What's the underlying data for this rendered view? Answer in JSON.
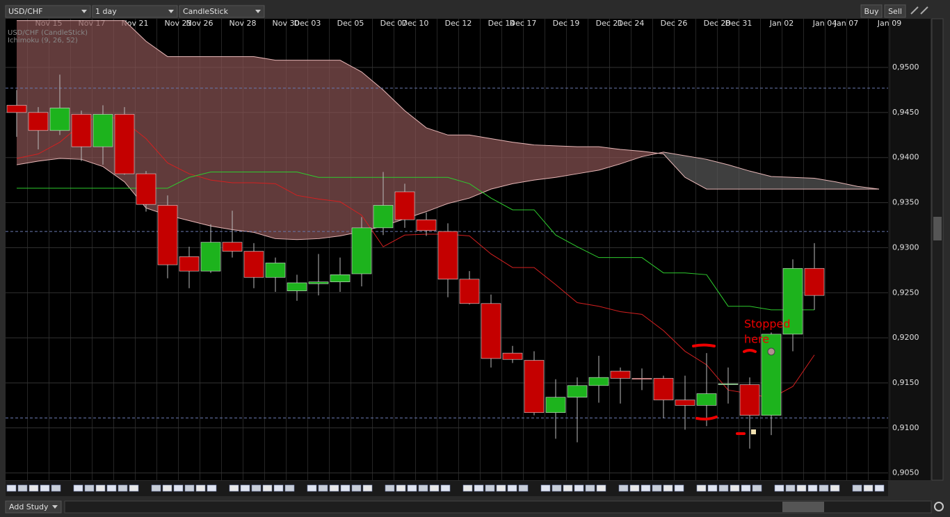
{
  "toolbar": {
    "symbol": "USD/CHF",
    "period": "1 day",
    "chart_type": "CandleStick",
    "buy": "Buy",
    "sell": "Sell"
  },
  "footer": {
    "add_study": "Add Study"
  },
  "chart_data": {
    "type": "candlestick",
    "legend": [
      "USD/CHF (CandleStick)",
      "Ichimoku (9, 26, 52)"
    ],
    "annotation": [
      "Stopped",
      "here"
    ],
    "categories": [
      null,
      "Nov 15",
      null,
      "Nov 17",
      null,
      "Nov 21",
      null,
      "Nov 23",
      "Nov 26",
      null,
      "Nov 28",
      null,
      "Nov 30",
      "Dec 03",
      null,
      "Dec 05",
      null,
      "Dec 07",
      "Dec 10",
      null,
      "Dec 12",
      null,
      "Dec 14",
      "Dec 17",
      null,
      "Dec 19",
      null,
      "Dec 21",
      "Dec 24",
      null,
      "Dec 26",
      null,
      "Dec 28",
      "Dec 31",
      null,
      "Jan 02",
      null,
      "Jan 04",
      "Jan 07",
      null,
      "Jan 09"
    ],
    "open": [
      0.9458,
      0.945,
      0.943,
      0.9448,
      0.9412,
      0.9448,
      0.9382,
      0.9347,
      0.929,
      0.9274,
      0.9306,
      0.9296,
      0.9267,
      0.9252,
      0.926,
      0.9262,
      0.9271,
      0.9322,
      0.9362,
      0.9331,
      0.9318,
      0.9265,
      0.9238,
      0.9183,
      0.9175,
      0.9117,
      0.9134,
      0.9147,
      0.9163,
      0.9155,
      0.9155,
      0.9131,
      0.9125,
      0.9148,
      0.9148,
      0.9114,
      0.9204,
      0.9277,
      null,
      null,
      null
    ],
    "high": [
      0.9475,
      0.9456,
      0.9492,
      0.9452,
      0.9458,
      0.9456,
      0.9385,
      0.9358,
      0.9301,
      0.9326,
      0.9341,
      0.9305,
      0.9289,
      0.927,
      0.9293,
      0.9289,
      0.9334,
      0.9384,
      0.9371,
      0.9339,
      0.9327,
      0.9274,
      0.9248,
      0.9191,
      0.9185,
      0.9154,
      0.9156,
      0.918,
      0.9167,
      0.9166,
      0.9158,
      0.9158,
      0.9183,
      0.9167,
      0.9156,
      0.9206,
      0.9287,
      0.9305,
      null,
      null,
      null
    ],
    "low": [
      0.9423,
      0.9409,
      0.9425,
      0.9396,
      0.9392,
      0.9381,
      0.934,
      0.9266,
      0.9255,
      0.9272,
      0.9289,
      0.9255,
      0.9251,
      0.9241,
      0.9247,
      0.9251,
      0.9257,
      0.9314,
      0.9322,
      0.9313,
      0.9245,
      0.9237,
      0.9167,
      0.9172,
      0.9114,
      0.9088,
      0.9084,
      0.9128,
      0.9127,
      0.9142,
      0.9111,
      0.9098,
      0.9102,
      0.9127,
      0.9077,
      0.9092,
      0.9185,
      0.9231,
      null,
      null,
      null
    ],
    "close": [
      0.945,
      0.943,
      0.9455,
      0.9412,
      0.9448,
      0.9382,
      0.9348,
      0.9281,
      0.9274,
      0.9306,
      0.9296,
      0.9267,
      0.9283,
      0.9261,
      0.9262,
      0.927,
      0.9322,
      0.9347,
      0.9331,
      0.9319,
      0.9265,
      0.9238,
      0.9177,
      0.9176,
      0.9117,
      0.9134,
      0.9147,
      0.9156,
      0.9155,
      0.9154,
      0.9131,
      0.9125,
      0.9138,
      0.9149,
      0.9114,
      0.9204,
      0.9277,
      0.9247,
      null,
      null,
      null
    ],
    "up_color": "#1db31d",
    "down_color": "#c40000",
    "lines": [
      {
        "color": "#d42020",
        "values": [
          0.9399,
          0.9404,
          0.9417,
          0.9437,
          0.9448,
          0.944,
          0.9421,
          0.9394,
          0.9382,
          0.9375,
          0.9372,
          0.9372,
          0.9371,
          0.9358,
          0.9354,
          0.9351,
          0.9336,
          0.9301,
          0.9314,
          0.9315,
          0.9315,
          0.9313,
          0.9293,
          0.9278,
          0.9278,
          0.9259,
          0.9239,
          0.9235,
          0.9229,
          0.9226,
          0.9208,
          0.9185,
          0.917,
          0.9142,
          0.9138,
          0.9133,
          0.9146,
          0.9181,
          null,
          null,
          null
        ]
      },
      {
        "color": "#2ecc2e",
        "values": [
          0.9366,
          0.9366,
          0.9366,
          0.9366,
          0.9366,
          0.9366,
          0.9366,
          0.9366,
          0.9378,
          0.9384,
          0.9384,
          0.9384,
          0.9384,
          0.9384,
          0.9378,
          0.9378,
          0.9378,
          0.9378,
          0.9378,
          0.9378,
          0.9378,
          0.9371,
          0.9355,
          0.9342,
          0.9342,
          0.9314,
          0.9301,
          0.9289,
          0.9289,
          0.9289,
          0.9272,
          0.9272,
          0.927,
          0.9235,
          0.9235,
          0.9231,
          0.9231,
          0.9231,
          null,
          null,
          null
        ]
      }
    ],
    "cloud": {
      "up_color": "#8a5454",
      "down_color": "#5a5a5a",
      "line_color": "#e8b8b8",
      "span_a": [
        0.9552,
        0.9552,
        0.9552,
        0.9552,
        0.9552,
        0.9552,
        0.9529,
        0.9512,
        0.9512,
        0.9512,
        0.9512,
        0.9512,
        0.9508,
        0.9508,
        0.9508,
        0.9508,
        0.9495,
        0.9475,
        0.9452,
        0.9433,
        0.9425,
        0.9425,
        0.9421,
        0.9417,
        0.9414,
        0.9413,
        0.9412,
        0.9412,
        0.9409,
        0.9407,
        0.9404,
        0.9378,
        0.9365,
        0.9365,
        0.9365,
        0.9365,
        0.9365,
        0.9365,
        0.9365,
        0.9365,
        0.9365
      ],
      "span_b": [
        0.9392,
        0.9396,
        0.9399,
        0.9398,
        0.939,
        0.9373,
        0.9344,
        0.9336,
        0.933,
        0.9324,
        0.932,
        0.9317,
        0.931,
        0.9309,
        0.931,
        0.9313,
        0.9318,
        0.9324,
        0.9332,
        0.934,
        0.9349,
        0.9355,
        0.9365,
        0.9371,
        0.9375,
        0.9378,
        0.9382,
        0.9386,
        0.9393,
        0.9401,
        0.9406,
        0.9402,
        0.9398,
        0.9392,
        0.9385,
        0.9379,
        0.9378,
        0.9377,
        0.9373,
        0.9368,
        0.9365
      ]
    },
    "levels": [
      0.9477,
      0.9318,
      0.9111
    ],
    "ylim": [
      0.9042,
      0.9554
    ],
    "yticks": [
      {
        "value": 0.905,
        "label": "0,9050"
      },
      {
        "value": 0.91,
        "label": "0,9100"
      },
      {
        "value": 0.915,
        "label": "0,9150"
      },
      {
        "value": 0.92,
        "label": "0,9200"
      },
      {
        "value": 0.925,
        "label": "0,9250"
      },
      {
        "value": 0.93,
        "label": "0,9300"
      },
      {
        "value": 0.935,
        "label": "0,9350"
      },
      {
        "value": 0.94,
        "label": "0,9400"
      },
      {
        "value": 0.945,
        "label": "0,9450"
      },
      {
        "value": 0.95,
        "label": "0,9500"
      }
    ],
    "grid": true
  }
}
